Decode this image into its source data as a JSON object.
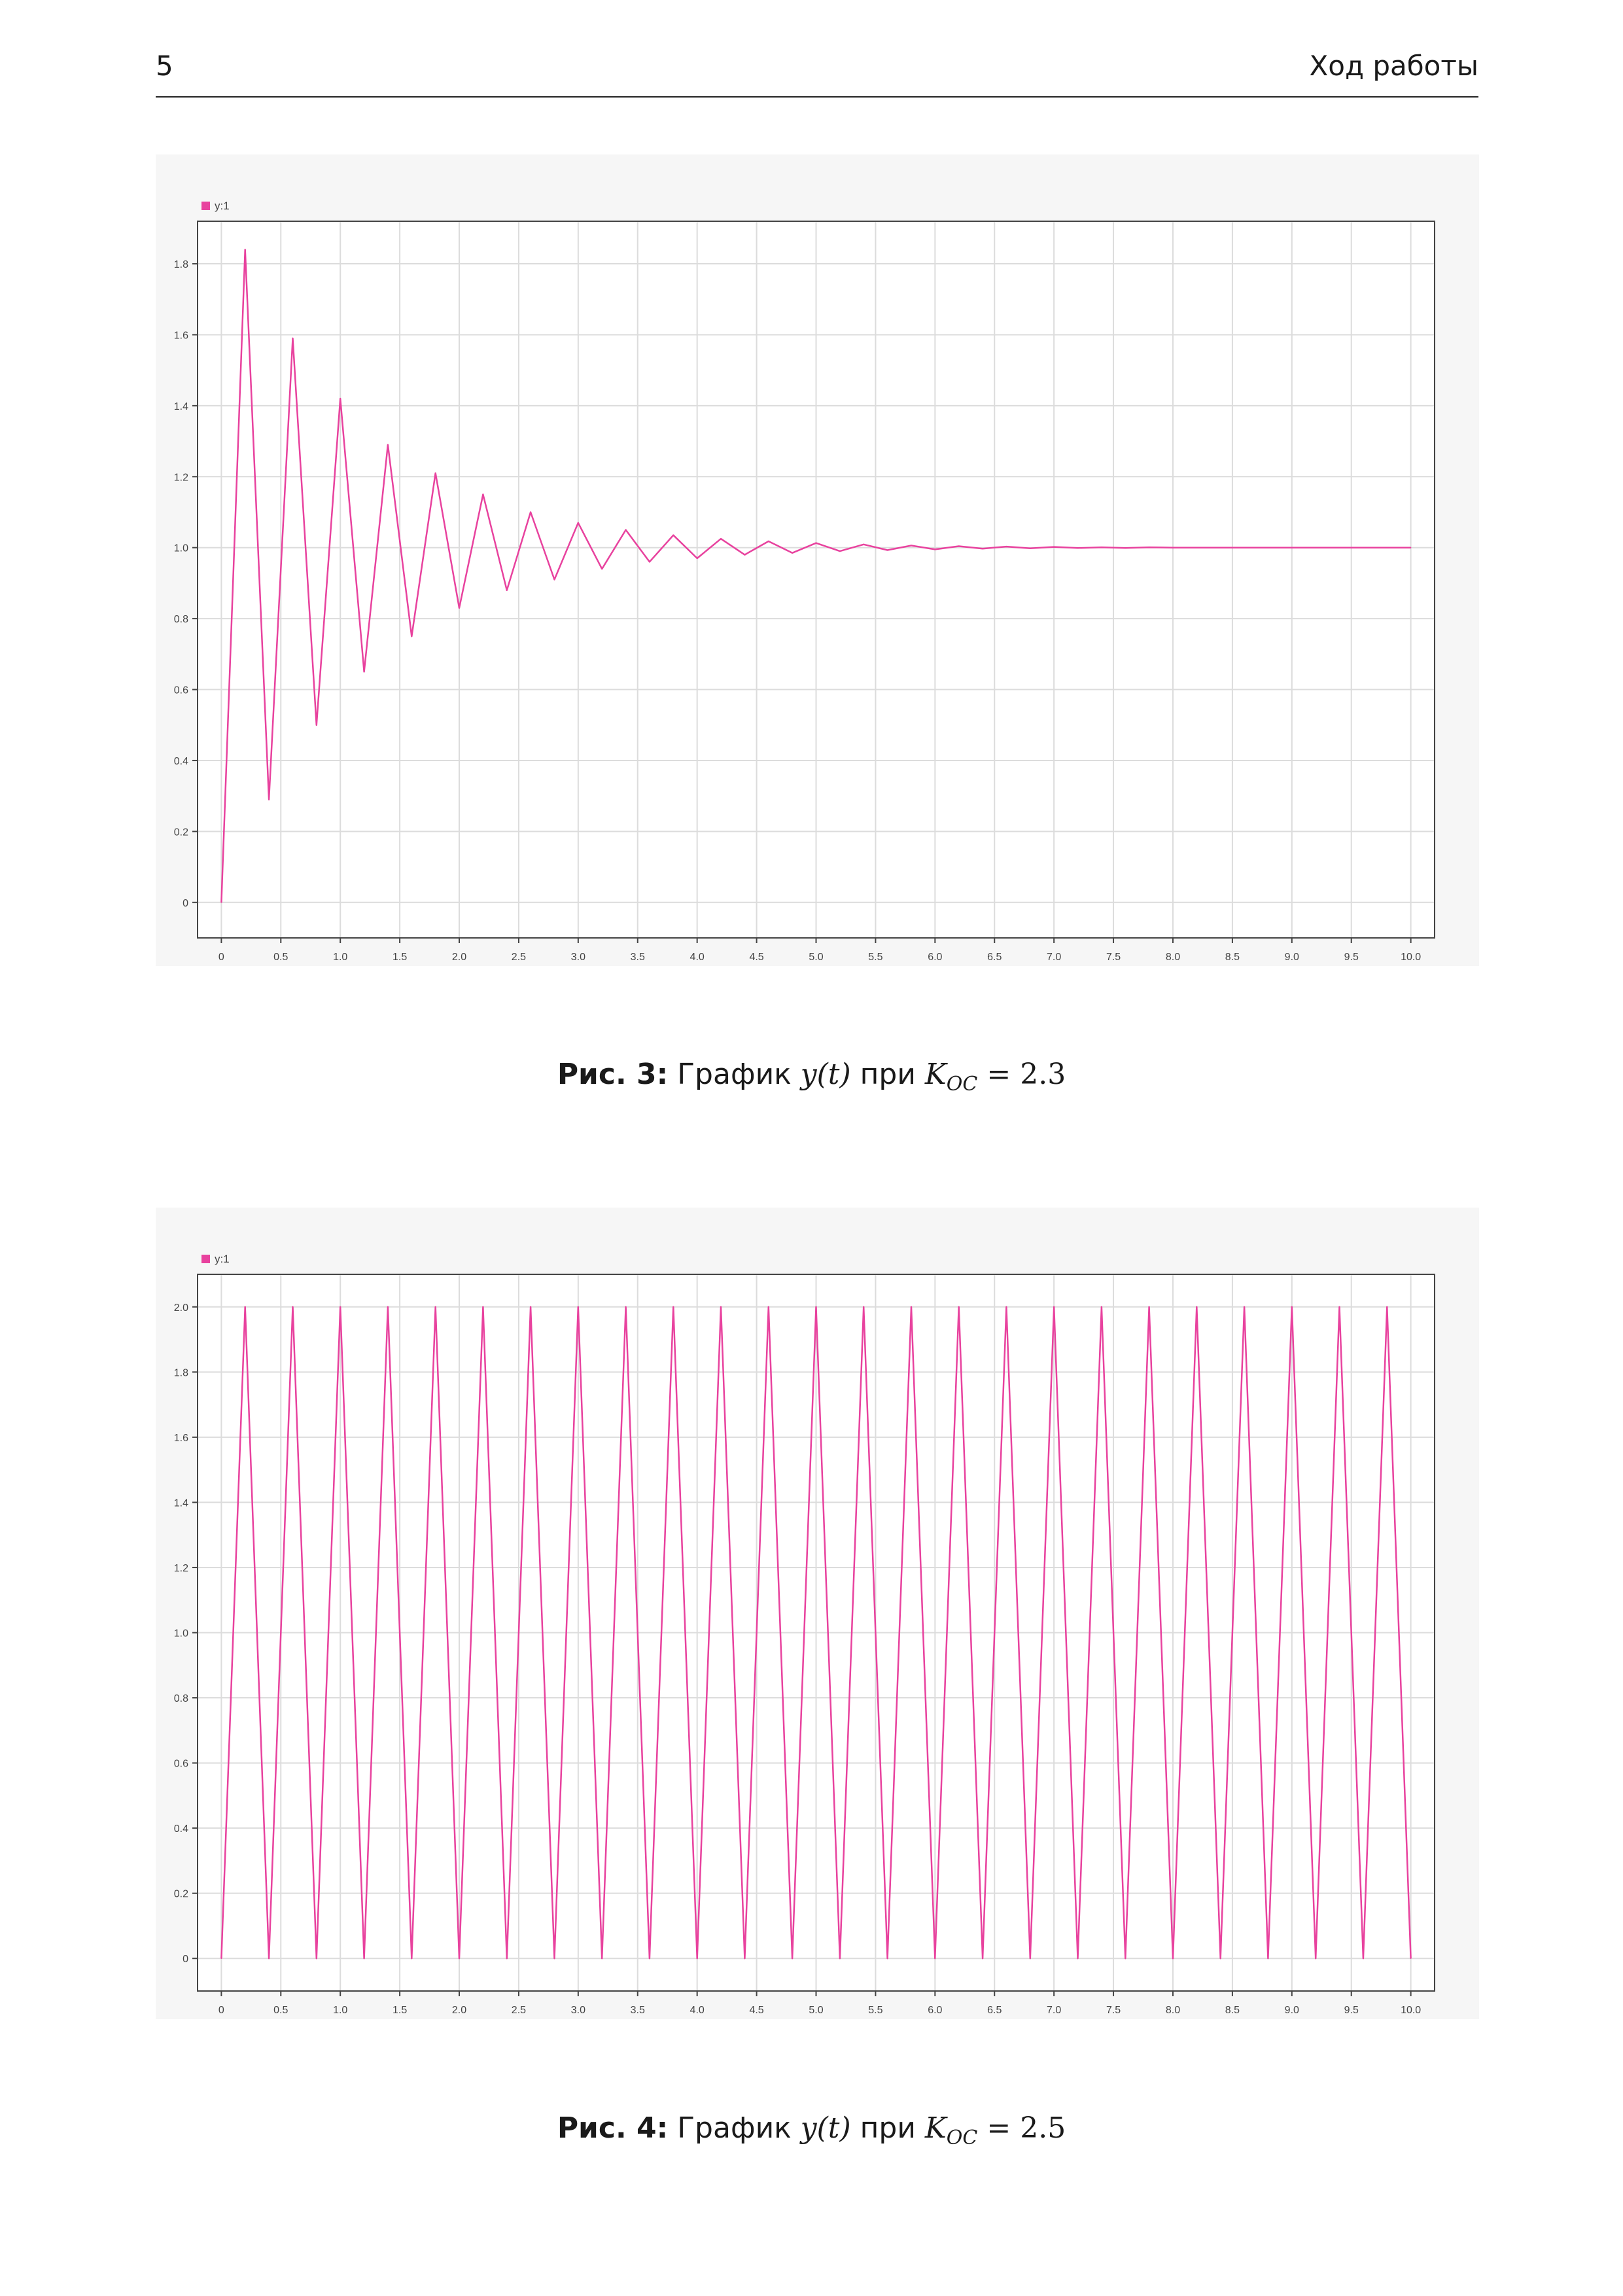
{
  "header": {
    "page_number": "5",
    "section_title": "Ход работы"
  },
  "figures": [
    {
      "caption": {
        "label": "Рис. 3:",
        "text_before": "График",
        "math_y": "y(t)",
        "text_mid": "при",
        "math_k": "K",
        "math_k_sub": "OC",
        "math_eq": "= 2.3"
      },
      "legend": "y:1"
    },
    {
      "caption": {
        "label": "Рис. 4:",
        "text_before": "График",
        "math_y": "y(t)",
        "text_mid": "при",
        "math_k": "K",
        "math_k_sub": "OC",
        "math_eq": "= 2.5"
      },
      "legend": "y:1"
    }
  ],
  "colors": {
    "series": "#e8429e",
    "grid": "#dcdcdc",
    "axis": "#444444",
    "plot_bg": "#ffffff",
    "figure_bg": "#f6f6f6"
  },
  "chart_data": [
    {
      "type": "line",
      "title": "",
      "xlabel": "",
      "ylabel": "",
      "xlim": [
        -0.2,
        10.2
      ],
      "ylim": [
        -0.1,
        1.92
      ],
      "x_ticks": [
        "0",
        "0.5",
        "1.0",
        "1.5",
        "2.0",
        "2.5",
        "3.0",
        "3.5",
        "4.0",
        "4.5",
        "5.0",
        "5.5",
        "6.0",
        "6.5",
        "7.0",
        "7.5",
        "8.0",
        "8.5",
        "9.0",
        "9.5",
        "10.0"
      ],
      "y_ticks": [
        "0",
        "0.2",
        "0.4",
        "0.6",
        "0.8",
        "1.0",
        "1.2",
        "1.4",
        "1.6",
        "1.8"
      ],
      "grid": true,
      "legend_position": "top-left",
      "series": [
        {
          "name": "y:1",
          "x": [
            0,
            0.2,
            0.4,
            0.6,
            0.8,
            1.0,
            1.2,
            1.4,
            1.6,
            1.8,
            2.0,
            2.2,
            2.4,
            2.6,
            2.8,
            3.0,
            3.2,
            3.4,
            3.6,
            3.8,
            4.0,
            4.2,
            4.4,
            4.6,
            4.8,
            5.0,
            5.2,
            5.4,
            5.6,
            5.8,
            6.0,
            6.2,
            6.4,
            6.6,
            6.8,
            7.0,
            7.2,
            7.4,
            7.6,
            7.8,
            8.0,
            8.2,
            8.4,
            8.6,
            8.8,
            9.0,
            9.2,
            9.4,
            9.6,
            9.8,
            10.0
          ],
          "y": [
            0,
            1.84,
            0.29,
            1.59,
            0.5,
            1.42,
            0.65,
            1.29,
            0.75,
            1.21,
            0.83,
            1.15,
            0.88,
            1.1,
            0.91,
            1.07,
            0.94,
            1.05,
            0.96,
            1.035,
            0.97,
            1.025,
            0.98,
            1.018,
            0.985,
            1.013,
            0.99,
            1.009,
            0.993,
            1.006,
            0.995,
            1.004,
            0.997,
            1.003,
            0.998,
            1.002,
            0.999,
            1.001,
            0.999,
            1.001,
            1.0,
            1.0,
            1.0,
            1.0,
            1.0,
            1.0,
            1.0,
            1.0,
            1.0,
            1.0,
            1.0
          ]
        }
      ]
    },
    {
      "type": "line",
      "title": "",
      "xlabel": "",
      "ylabel": "",
      "xlim": [
        -0.2,
        10.2
      ],
      "ylim": [
        -0.1,
        2.1
      ],
      "x_ticks": [
        "0",
        "0.5",
        "1.0",
        "1.5",
        "2.0",
        "2.5",
        "3.0",
        "3.5",
        "4.0",
        "4.5",
        "5.0",
        "5.5",
        "6.0",
        "6.5",
        "7.0",
        "7.5",
        "8.0",
        "8.5",
        "9.0",
        "9.5",
        "10.0"
      ],
      "y_ticks": [
        "0",
        "0.2",
        "0.4",
        "0.6",
        "0.8",
        "1.0",
        "1.2",
        "1.4",
        "1.6",
        "1.8",
        "2.0"
      ],
      "grid": true,
      "legend_position": "top-left",
      "series": [
        {
          "name": "y:1",
          "x": [
            0,
            0.2,
            0.4,
            0.6,
            0.8,
            1.0,
            1.2,
            1.4,
            1.6,
            1.8,
            2.0,
            2.2,
            2.4,
            2.6,
            2.8,
            3.0,
            3.2,
            3.4,
            3.6,
            3.8,
            4.0,
            4.2,
            4.4,
            4.6,
            4.8,
            5.0,
            5.2,
            5.4,
            5.6,
            5.8,
            6.0,
            6.2,
            6.4,
            6.6,
            6.8,
            7.0,
            7.2,
            7.4,
            7.6,
            7.8,
            8.0,
            8.2,
            8.4,
            8.6,
            8.8,
            9.0,
            9.2,
            9.4,
            9.6,
            9.8,
            10.0
          ],
          "y": [
            0,
            2,
            0,
            2,
            0,
            2,
            0,
            2,
            0,
            2,
            0,
            2,
            0,
            2,
            0,
            2,
            0,
            2,
            0,
            2,
            0,
            2,
            0,
            2,
            0,
            2,
            0,
            2,
            0,
            2,
            0,
            2,
            0,
            2,
            0,
            2,
            0,
            2,
            0,
            2,
            0,
            2,
            0,
            2,
            0,
            2,
            0,
            2,
            0,
            2,
            0
          ]
        }
      ]
    }
  ]
}
